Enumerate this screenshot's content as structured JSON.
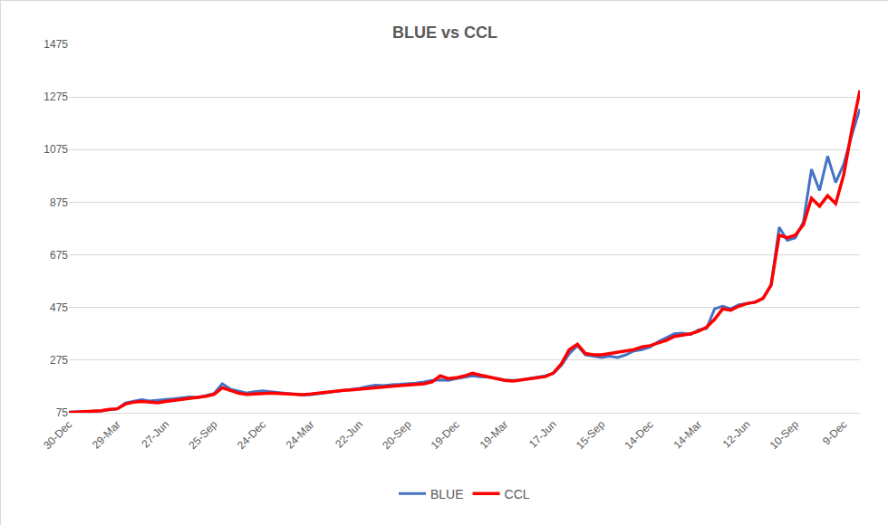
{
  "chart_data": {
    "type": "line",
    "title": "BLUE vs CCL",
    "categories": [
      "30-Dec",
      null,
      null,
      null,
      null,
      null,
      "29-Mar",
      null,
      null,
      null,
      null,
      null,
      "27-Jun",
      null,
      null,
      null,
      null,
      null,
      "25-Sep",
      null,
      null,
      null,
      null,
      null,
      "24-Dec",
      null,
      null,
      null,
      null,
      null,
      "24-Mar",
      null,
      null,
      null,
      null,
      null,
      "22-Jun",
      null,
      null,
      null,
      null,
      null,
      "20-Sep",
      null,
      null,
      null,
      null,
      null,
      "19-Dec",
      null,
      null,
      null,
      null,
      null,
      "19-Mar",
      null,
      null,
      null,
      null,
      null,
      "17-Jun",
      null,
      null,
      null,
      null,
      null,
      "15-Sep",
      null,
      null,
      null,
      null,
      null,
      "14-Dec",
      null,
      null,
      null,
      null,
      null,
      "14-Mar",
      null,
      null,
      null,
      null,
      null,
      "12-Jun",
      null,
      null,
      null,
      null,
      null,
      "10-Sep",
      null,
      null,
      null,
      null,
      null,
      "9-Dec",
      null,
      null
    ],
    "series": [
      {
        "name": "BLUE",
        "color": "#4472c4",
        "values": [
          78,
          79,
          80,
          80,
          82,
          86,
          90,
          112,
          118,
          125,
          120,
          122,
          125,
          128,
          132,
          135,
          133,
          140,
          148,
          185,
          165,
          158,
          150,
          155,
          158,
          155,
          152,
          148,
          145,
          142,
          144,
          148,
          152,
          155,
          158,
          162,
          168,
          175,
          180,
          178,
          182,
          183,
          185,
          188,
          192,
          198,
          200,
          198,
          205,
          210,
          215,
          212,
          210,
          205,
          200,
          198,
          200,
          205,
          210,
          215,
          225,
          255,
          300,
          330,
          295,
          290,
          285,
          290,
          285,
          295,
          310,
          315,
          325,
          345,
          360,
          375,
          378,
          372,
          390,
          395,
          470,
          480,
          470,
          485,
          490,
          495,
          510,
          560,
          780,
          730,
          740,
          800,
          1000,
          920,
          1050,
          950,
          1020,
          1130,
          1230
        ]
      },
      {
        "name": "CCL",
        "color": "#ff0000",
        "values": [
          76,
          78,
          79,
          81,
          83,
          88,
          90,
          108,
          115,
          118,
          114,
          113,
          118,
          122,
          125,
          128,
          132,
          138,
          145,
          170,
          160,
          150,
          145,
          148,
          148,
          150,
          148,
          146,
          146,
          144,
          146,
          150,
          152,
          155,
          160,
          162,
          165,
          170,
          172,
          175,
          176,
          178,
          180,
          183,
          185,
          192,
          215,
          205,
          208,
          215,
          225,
          218,
          210,
          205,
          198,
          195,
          200,
          205,
          210,
          212,
          225,
          260,
          315,
          335,
          300,
          295,
          295,
          300,
          305,
          310,
          315,
          325,
          330,
          340,
          350,
          365,
          370,
          375,
          385,
          400,
          430,
          470,
          465,
          480,
          490,
          495,
          510,
          560,
          750,
          740,
          750,
          790,
          890,
          860,
          900,
          870,
          980,
          1150,
          1300
        ]
      }
    ],
    "ylim": [
      75,
      1475
    ],
    "yticks": [
      75,
      275,
      475,
      675,
      875,
      1075,
      1275,
      1475
    ],
    "grid": true,
    "legend": "bottom"
  }
}
